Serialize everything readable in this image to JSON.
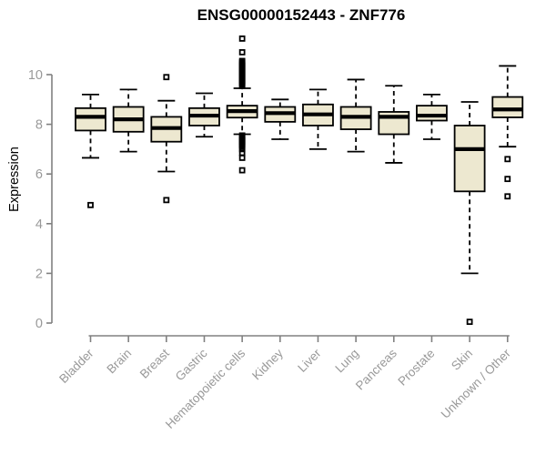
{
  "chart_data": {
    "type": "boxplot",
    "title": "ENSG00000152443 - ZNF776",
    "ylabel": "Expression",
    "xlabel": "",
    "ylim": [
      0,
      10
    ],
    "yticks": [
      0,
      2,
      4,
      6,
      8,
      10
    ],
    "grid": false,
    "legend": false,
    "categories": [
      "Bladder",
      "Brain",
      "Breast",
      "Gastric",
      "Hematopoietic cells",
      "Kidney",
      "Liver",
      "Lung",
      "Pancreas",
      "Prostate",
      "Skin",
      "Unknown / Other"
    ],
    "series": [
      {
        "name": "Bladder",
        "whisker_low": 6.65,
        "q1": 7.75,
        "median": 8.3,
        "q3": 8.65,
        "whisker_high": 9.2,
        "outliers": [
          4.75
        ]
      },
      {
        "name": "Brain",
        "whisker_low": 6.9,
        "q1": 7.7,
        "median": 8.2,
        "q3": 8.7,
        "whisker_high": 9.4,
        "outliers": []
      },
      {
        "name": "Breast",
        "whisker_low": 6.1,
        "q1": 7.3,
        "median": 7.85,
        "q3": 8.3,
        "whisker_high": 8.95,
        "outliers": [
          9.9,
          4.95
        ]
      },
      {
        "name": "Gastric",
        "whisker_low": 7.5,
        "q1": 7.95,
        "median": 8.35,
        "q3": 8.65,
        "whisker_high": 9.25,
        "outliers": []
      },
      {
        "name": "Hematopoietic cells",
        "whisker_low": 7.6,
        "q1": 8.27,
        "median": 8.53,
        "q3": 8.75,
        "whisker_high": 9.45,
        "outliers": [
          11.45,
          10.9,
          10.55,
          10.5,
          10.45,
          10.4,
          10.35,
          10.3,
          10.25,
          10.2,
          10.15,
          10.1,
          10.05,
          10.0,
          9.95,
          9.9,
          9.85,
          9.8,
          9.75,
          9.7,
          9.65,
          9.6,
          9.55,
          7.55,
          7.5,
          7.45,
          7.4,
          7.35,
          7.3,
          7.25,
          7.2,
          7.15,
          7.1,
          7.0,
          6.85,
          6.65,
          6.15
        ]
      },
      {
        "name": "Kidney",
        "whisker_low": 7.4,
        "q1": 8.1,
        "median": 8.45,
        "q3": 8.7,
        "whisker_high": 9.0,
        "outliers": []
      },
      {
        "name": "Liver",
        "whisker_low": 7.0,
        "q1": 7.95,
        "median": 8.4,
        "q3": 8.8,
        "whisker_high": 9.4,
        "outliers": []
      },
      {
        "name": "Lung",
        "whisker_low": 6.9,
        "q1": 7.8,
        "median": 8.3,
        "q3": 8.7,
        "whisker_high": 9.8,
        "outliers": []
      },
      {
        "name": "Pancreas",
        "whisker_low": 6.45,
        "q1": 7.6,
        "median": 8.3,
        "q3": 8.5,
        "whisker_high": 9.55,
        "outliers": []
      },
      {
        "name": "Prostate",
        "whisker_low": 7.4,
        "q1": 8.15,
        "median": 8.35,
        "q3": 8.75,
        "whisker_high": 9.2,
        "outliers": []
      },
      {
        "name": "Skin",
        "whisker_low": 2.0,
        "q1": 5.3,
        "median": 7.0,
        "q3": 7.95,
        "whisker_high": 8.9,
        "outliers": [
          0.05
        ]
      },
      {
        "name": "Unknown / Other",
        "whisker_low": 7.1,
        "q1": 8.28,
        "median": 8.6,
        "q3": 9.1,
        "whisker_high": 10.35,
        "outliers": [
          6.6,
          5.8,
          5.1
        ]
      }
    ]
  },
  "colors": {
    "background": "#ffffff",
    "box_fill": "#EDE8D0",
    "box_stroke": "#000000",
    "median": "#000000",
    "whisker": "#000000",
    "outlier": "#000000",
    "axis": "#808080",
    "tick_label": "#999999",
    "title": "#000000"
  }
}
